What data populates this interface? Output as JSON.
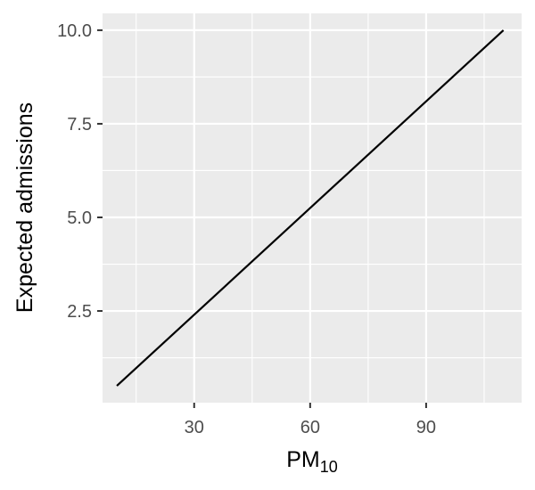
{
  "chart_data": {
    "type": "line",
    "title": "",
    "xlabel": "PM",
    "xlabel_subscript": "10",
    "ylabel": "Expected admissions",
    "xlim": [
      6.3,
      114.7
    ],
    "ylim": [
      0.05,
      10.45
    ],
    "x_ticks": [
      30,
      60,
      90
    ],
    "x_tick_labels": [
      "30",
      "60",
      "90"
    ],
    "x_minor_ticks": [
      15,
      45,
      75,
      105
    ],
    "y_ticks": [
      2.5,
      5.0,
      7.5,
      10.0
    ],
    "y_tick_labels": [
      "2.5",
      "5.0",
      "7.5",
      "10.0"
    ],
    "y_minor_ticks": [
      1.25,
      3.75,
      6.25,
      8.75
    ],
    "grid": true,
    "legend": "none",
    "colors": {
      "panel": "#ebebeb",
      "grid": "#ffffff",
      "line": "#000000",
      "tick_text": "#4d4d4d",
      "tick_mark": "#333333"
    },
    "series": [
      {
        "x": [
          10,
          110
        ],
        "y": [
          0.5,
          10.0
        ]
      }
    ]
  }
}
